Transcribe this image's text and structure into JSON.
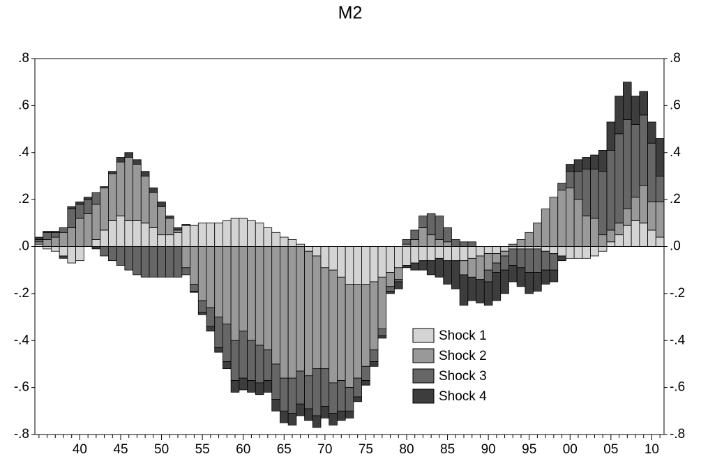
{
  "chart_data": {
    "type": "stacked_bar",
    "title": "M2",
    "categories": [
      null,
      null,
      null,
      null,
      null,
      "40",
      null,
      null,
      null,
      null,
      "45",
      null,
      null,
      null,
      null,
      "50",
      null,
      null,
      null,
      null,
      "55",
      null,
      null,
      null,
      null,
      "60",
      null,
      null,
      null,
      null,
      "65",
      null,
      null,
      null,
      null,
      "70",
      null,
      null,
      null,
      null,
      "75",
      null,
      null,
      null,
      null,
      "80",
      null,
      null,
      null,
      null,
      "85",
      null,
      null,
      null,
      null,
      "90",
      null,
      null,
      null,
      null,
      "95",
      null,
      null,
      null,
      null,
      "00",
      null,
      null,
      null,
      null,
      "05",
      null,
      null,
      null,
      null,
      "10",
      null
    ],
    "series": [
      {
        "name": "Shock 1",
        "color": "#d4d4d4",
        "values": [
          0.01,
          -0.01,
          -0.02,
          -0.04,
          -0.07,
          -0.06,
          0.0,
          0.03,
          0.07,
          0.11,
          0.13,
          0.11,
          0.11,
          0.1,
          0.08,
          0.05,
          0.05,
          0.06,
          0.09,
          0.09,
          0.1,
          0.1,
          0.1,
          0.11,
          0.12,
          0.12,
          0.11,
          0.1,
          0.08,
          0.06,
          0.04,
          0.03,
          0.01,
          -0.02,
          -0.04,
          -0.09,
          -0.1,
          -0.13,
          -0.16,
          -0.16,
          -0.16,
          -0.15,
          -0.13,
          -0.11,
          -0.09,
          -0.08,
          -0.07,
          -0.06,
          -0.06,
          -0.05,
          -0.06,
          -0.06,
          -0.06,
          -0.05,
          -0.04,
          -0.03,
          -0.03,
          -0.02,
          -0.01,
          -0.01,
          -0.01,
          -0.01,
          -0.02,
          -0.03,
          -0.04,
          -0.05,
          -0.05,
          -0.05,
          -0.04,
          -0.02,
          0.02,
          0.05,
          0.09,
          0.11,
          0.1,
          0.07,
          0.04
        ]
      },
      {
        "name": "Shock 2",
        "color": "#999999",
        "values": [
          0.01,
          0.03,
          0.04,
          0.06,
          0.08,
          0.12,
          0.14,
          0.15,
          0.18,
          0.2,
          0.23,
          0.27,
          0.24,
          0.2,
          0.15,
          0.12,
          0.07,
          0.01,
          -0.09,
          -0.16,
          -0.23,
          -0.26,
          -0.3,
          -0.33,
          -0.4,
          -0.36,
          -0.4,
          -0.42,
          -0.44,
          -0.5,
          -0.56,
          -0.56,
          -0.53,
          -0.53,
          -0.48,
          -0.43,
          -0.48,
          -0.44,
          -0.44,
          -0.4,
          -0.35,
          -0.29,
          -0.22,
          -0.06,
          -0.05,
          0.01,
          0.03,
          0.08,
          0.05,
          0.03,
          0.02,
          0.0,
          -0.06,
          -0.08,
          -0.1,
          -0.07,
          -0.04,
          -0.02,
          0.01,
          0.03,
          0.06,
          0.1,
          0.16,
          0.21,
          0.24,
          0.25,
          0.2,
          0.13,
          0.12,
          0.05,
          0.05,
          0.05,
          0.07,
          0.1,
          0.16,
          0.12,
          0.15
        ]
      },
      {
        "name": "Shock 3",
        "color": "#666666",
        "values": [
          0.01,
          0.03,
          0.02,
          0.02,
          0.08,
          0.06,
          0.06,
          0.05,
          -0.04,
          -0.06,
          -0.08,
          -0.1,
          -0.12,
          -0.13,
          -0.13,
          -0.13,
          -0.13,
          -0.13,
          -0.03,
          -0.03,
          -0.05,
          -0.08,
          -0.13,
          -0.16,
          -0.17,
          -0.2,
          -0.17,
          -0.16,
          -0.13,
          -0.15,
          -0.14,
          -0.15,
          -0.14,
          -0.14,
          -0.2,
          -0.16,
          -0.13,
          -0.13,
          -0.1,
          -0.08,
          -0.06,
          -0.05,
          -0.03,
          -0.02,
          -0.01,
          0.02,
          0.04,
          0.05,
          0.09,
          0.1,
          0.06,
          0.03,
          0.02,
          0.02,
          0.0,
          -0.05,
          -0.04,
          -0.06,
          -0.07,
          -0.08,
          -0.1,
          -0.1,
          -0.08,
          -0.07,
          0.03,
          0.07,
          0.12,
          0.2,
          0.21,
          0.27,
          0.34,
          0.38,
          0.38,
          0.31,
          0.3,
          0.25,
          0.11
        ]
      },
      {
        "name": "Shock 4",
        "color": "#3d3d3d",
        "values": [
          0.01,
          0.005,
          0.005,
          -0.01,
          0.01,
          0.01,
          0.01,
          -0.01,
          0.005,
          0.01,
          0.02,
          0.02,
          0.02,
          0.02,
          0.02,
          0.02,
          0.01,
          0.01,
          0.005,
          -0.005,
          -0.01,
          -0.02,
          -0.02,
          -0.03,
          -0.05,
          -0.05,
          -0.05,
          -0.05,
          -0.05,
          -0.05,
          -0.05,
          -0.05,
          -0.05,
          -0.05,
          -0.05,
          -0.05,
          -0.05,
          -0.04,
          -0.03,
          -0.02,
          -0.02,
          -0.02,
          -0.01,
          -0.01,
          -0.03,
          -0.01,
          -0.03,
          -0.04,
          -0.06,
          -0.08,
          -0.1,
          -0.12,
          -0.13,
          -0.1,
          -0.1,
          -0.1,
          -0.12,
          -0.1,
          -0.07,
          -0.08,
          -0.09,
          -0.08,
          -0.06,
          -0.05,
          -0.02,
          0.03,
          0.05,
          0.05,
          0.06,
          0.09,
          0.12,
          0.16,
          0.16,
          0.12,
          0.1,
          0.09,
          0.16
        ]
      }
    ],
    "ylim": [
      -0.8,
      0.8
    ],
    "yticks": [
      {
        "value": -0.8,
        "label": "-.8"
      },
      {
        "value": -0.6,
        "label": "-.6"
      },
      {
        "value": -0.4,
        "label": "-.4"
      },
      {
        "value": -0.2,
        "label": "-.2"
      },
      {
        "value": 0,
        "label": ".0"
      },
      {
        "value": 0.2,
        "label": ".2"
      },
      {
        "value": 0.4,
        "label": ".4"
      },
      {
        "value": 0.6,
        "label": ".6"
      },
      {
        "value": 0.8,
        "label": ".8"
      }
    ],
    "legend": "lower-center"
  }
}
